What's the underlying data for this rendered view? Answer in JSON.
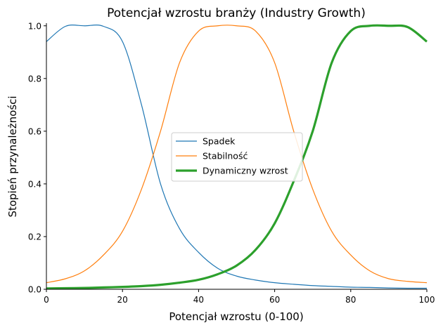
{
  "chart_data": {
    "type": "line",
    "title": "Potencjał wzrostu branży (Industry Growth)",
    "xlabel": "Potencjał wzrostu (0-100)",
    "ylabel": "Stopień przynależności",
    "xlim": [
      0,
      100
    ],
    "ylim": [
      0,
      1.01
    ],
    "xticks": [
      "0",
      "20",
      "40",
      "60",
      "80",
      "100"
    ],
    "yticks": [
      "0.0",
      "0.2",
      "0.4",
      "0.6",
      "0.8",
      "1.0"
    ],
    "grid": false,
    "legend_position": "center-right",
    "x": [
      0,
      5,
      10,
      15,
      20,
      25,
      30,
      35,
      40,
      45,
      50,
      55,
      60,
      65,
      70,
      75,
      80,
      85,
      90,
      95,
      100
    ],
    "series": [
      {
        "name": "Spadek",
        "color": "#1f77b4",
        "line_width": "thin",
        "values": [
          0.94,
          0.998,
          1.0,
          0.998,
          0.94,
          0.7,
          0.4,
          0.23,
          0.14,
          0.08,
          0.05,
          0.035,
          0.025,
          0.019,
          0.014,
          0.011,
          0.008,
          0.007,
          0.005,
          0.004,
          0.004
        ]
      },
      {
        "name": "Stabilność",
        "color": "#ff7f0e",
        "line_width": "thin",
        "values": [
          0.025,
          0.04,
          0.07,
          0.13,
          0.22,
          0.38,
          0.6,
          0.86,
          0.98,
          1.0,
          1.0,
          0.98,
          0.86,
          0.6,
          0.38,
          0.22,
          0.13,
          0.07,
          0.04,
          0.03,
          0.025
        ]
      },
      {
        "name": "Dynamiczny wzrost",
        "color": "#2ca02c",
        "line_width": "thick",
        "values": [
          0.003,
          0.004,
          0.005,
          0.007,
          0.009,
          0.012,
          0.017,
          0.025,
          0.036,
          0.057,
          0.09,
          0.15,
          0.25,
          0.41,
          0.6,
          0.86,
          0.98,
          1.0,
          1.0,
          0.995,
          0.94
        ]
      }
    ]
  }
}
